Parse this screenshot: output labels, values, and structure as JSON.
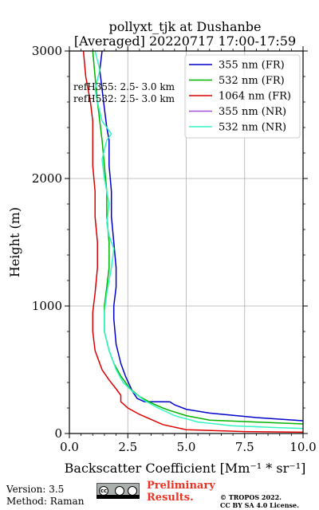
{
  "chart_data": {
    "type": "line",
    "title_line1": "pollyxt_tjk at Dushanbe",
    "title_line2": "[Averaged] 20220717 17:00-17:59",
    "xlabel": "Backscatter Coefficient [Mm⁻¹ * sr⁻¹]",
    "ylabel": "Height (m)",
    "xlim": [
      0,
      10
    ],
    "ylim": [
      0,
      3000
    ],
    "xticks": [
      "0.0",
      "2.5",
      "5.0",
      "7.5",
      "10.0"
    ],
    "yticks": [
      "0",
      "1000",
      "2000",
      "3000"
    ],
    "grid": true,
    "legend_position": "top-right",
    "annotations": [
      "refH355:  2.5- 3.0 km",
      "refH532:  2.5- 3.0 km"
    ],
    "series": [
      {
        "name": "355 nm (FR)",
        "color": "#0000cc",
        "points": [
          [
            10.0,
            100
          ],
          [
            8.0,
            125
          ],
          [
            6.0,
            160
          ],
          [
            5.0,
            190
          ],
          [
            4.5,
            225
          ],
          [
            4.3,
            248
          ],
          [
            3.2,
            250
          ],
          [
            2.9,
            275
          ],
          [
            2.7,
            330
          ],
          [
            2.4,
            450
          ],
          [
            2.2,
            550
          ],
          [
            2.0,
            700
          ],
          [
            1.9,
            900
          ],
          [
            1.9,
            1000
          ],
          [
            2.0,
            1150
          ],
          [
            2.0,
            1300
          ],
          [
            1.9,
            1500
          ],
          [
            1.8,
            1700
          ],
          [
            1.8,
            1900
          ],
          [
            1.7,
            2100
          ],
          [
            1.7,
            2300
          ],
          [
            1.6,
            2400
          ],
          [
            1.5,
            2550
          ],
          [
            1.4,
            2700
          ],
          [
            1.3,
            2850
          ],
          [
            1.4,
            3000
          ]
        ]
      },
      {
        "name": "532 nm (FR)",
        "color": "#00b300",
        "points": [
          [
            10.0,
            75
          ],
          [
            8.0,
            90
          ],
          [
            6.0,
            105
          ],
          [
            5.0,
            140
          ],
          [
            4.3,
            180
          ],
          [
            4.0,
            200
          ],
          [
            3.5,
            240
          ],
          [
            3.0,
            290
          ],
          [
            2.6,
            350
          ],
          [
            2.2,
            450
          ],
          [
            1.9,
            550
          ],
          [
            1.7,
            650
          ],
          [
            1.5,
            800
          ],
          [
            1.5,
            1000
          ],
          [
            1.6,
            1150
          ],
          [
            1.7,
            1300
          ],
          [
            1.7,
            1500
          ],
          [
            1.6,
            1700
          ],
          [
            1.6,
            1900
          ],
          [
            1.5,
            2100
          ],
          [
            1.4,
            2300
          ],
          [
            1.3,
            2450
          ],
          [
            1.2,
            2600
          ],
          [
            1.1,
            2800
          ],
          [
            1.0,
            3000
          ]
        ]
      },
      {
        "name": "1064 nm (FR)",
        "color": "#dd0000",
        "points": [
          [
            10.0,
            10
          ],
          [
            7.5,
            15
          ],
          [
            5.0,
            30
          ],
          [
            4.0,
            70
          ],
          [
            3.5,
            110
          ],
          [
            3.0,
            150
          ],
          [
            2.5,
            200
          ],
          [
            2.2,
            250
          ],
          [
            2.2,
            300
          ],
          [
            2.0,
            350
          ],
          [
            1.7,
            420
          ],
          [
            1.4,
            500
          ],
          [
            1.1,
            650
          ],
          [
            1.0,
            800
          ],
          [
            1.0,
            950
          ],
          [
            1.1,
            1100
          ],
          [
            1.2,
            1300
          ],
          [
            1.2,
            1500
          ],
          [
            1.1,
            1700
          ],
          [
            1.1,
            1900
          ],
          [
            1.0,
            2100
          ],
          [
            1.0,
            2300
          ],
          [
            1.0,
            2450
          ],
          [
            0.9,
            2600
          ],
          [
            0.7,
            2800
          ],
          [
            0.6,
            3000
          ]
        ]
      },
      {
        "name": "355 nm (NR)",
        "color": "#a64dd9",
        "points": []
      },
      {
        "name": "532 nm (NR)",
        "color": "#33f5c3",
        "points": [
          [
            10.0,
            40
          ],
          [
            9.0,
            45
          ],
          [
            7.0,
            60
          ],
          [
            5.5,
            90
          ],
          [
            4.5,
            140
          ],
          [
            3.8,
            200
          ],
          [
            3.2,
            260
          ],
          [
            2.7,
            330
          ],
          [
            2.3,
            400
          ],
          [
            2.0,
            500
          ],
          [
            1.7,
            650
          ],
          [
            1.5,
            800
          ],
          [
            1.5,
            950
          ],
          [
            1.6,
            1100
          ],
          [
            1.8,
            1300
          ],
          [
            1.9,
            1450
          ],
          [
            1.7,
            1550
          ],
          [
            1.6,
            1650
          ],
          [
            1.7,
            1800
          ],
          [
            1.5,
            2000
          ],
          [
            1.4,
            2150
          ],
          [
            1.6,
            2300
          ],
          [
            1.8,
            2350
          ],
          [
            1.4,
            2450
          ],
          [
            1.2,
            2600
          ],
          [
            1.1,
            2700
          ],
          [
            1.3,
            2850
          ],
          [
            1.1,
            3000
          ]
        ]
      }
    ]
  },
  "footer": {
    "version": "Version: 3.5",
    "method": "Method: Raman",
    "preliminary_line1": "Preliminary",
    "preliminary_line2": "Results.",
    "copyright_line1": "© TROPOS 2022.",
    "copyright_line2": "CC BY SA 4.0 License.",
    "cc_logo_text": "cc"
  }
}
